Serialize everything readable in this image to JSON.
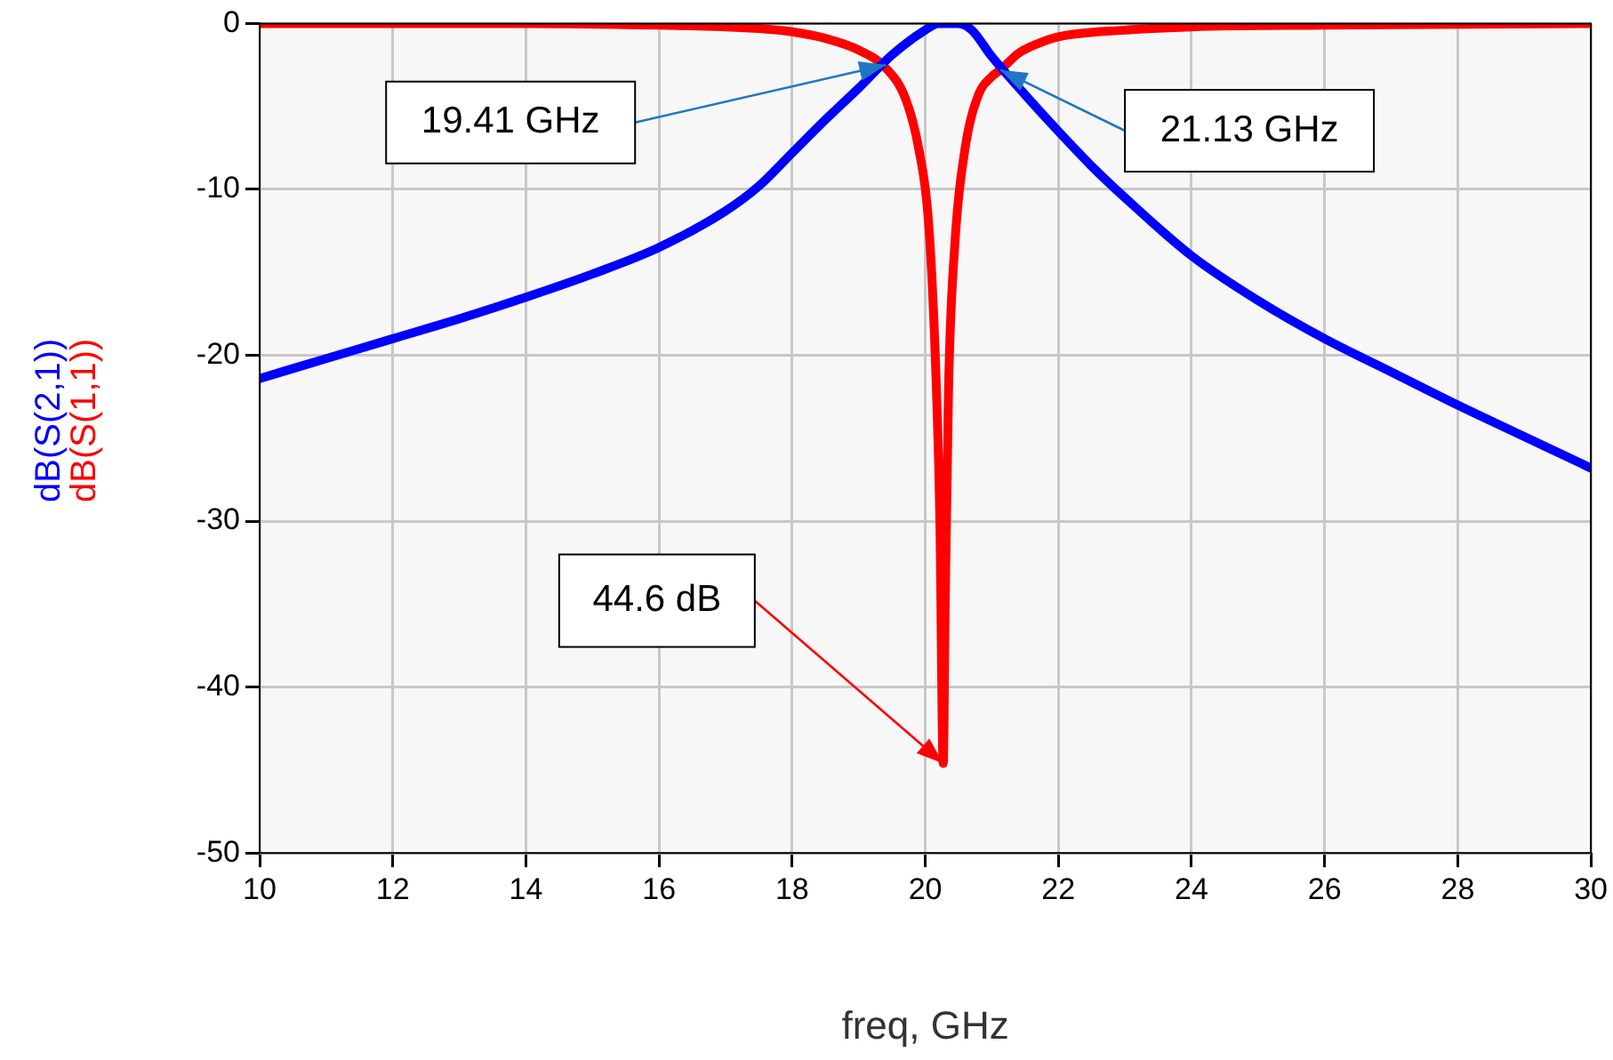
{
  "chart_data": {
    "type": "line",
    "xlabel": "freq, GHz",
    "xlim": [
      10,
      30
    ],
    "xticks": [
      10,
      12,
      14,
      16,
      18,
      20,
      22,
      24,
      26,
      28,
      30
    ],
    "ylim": [
      -50,
      0
    ],
    "yticks": [
      -50,
      -40,
      -30,
      -20,
      -10,
      0
    ],
    "grid": true,
    "legend": false,
    "marker": "none",
    "line_style": "solid",
    "series": [
      {
        "name": "dB(S(2,1))",
        "color": "#0000ff",
        "x": [
          10,
          11,
          12,
          13,
          14,
          15,
          16,
          17,
          17.5,
          18,
          18.5,
          19,
          19.5,
          20,
          20.2,
          20.5,
          20.7,
          21,
          21.5,
          22,
          22.5,
          23,
          24,
          25,
          26,
          27,
          28,
          29,
          30
        ],
        "values": [
          -21.4,
          -20.2,
          -19,
          -17.8,
          -16.5,
          -15.1,
          -13.5,
          -11.3,
          -9.8,
          -7.8,
          -5.8,
          -3.9,
          -1.9,
          -0.4,
          0,
          0,
          -0.4,
          -2,
          -4.3,
          -6.5,
          -8.6,
          -10.5,
          -14,
          -16.7,
          -19,
          -21,
          -23,
          -24.9,
          -26.8
        ]
      },
      {
        "name": "dB(S(1,1))",
        "color": "#ff0000",
        "x": [
          10,
          14,
          16,
          17,
          17.5,
          18,
          18.5,
          19,
          19.41,
          19.7,
          19.9,
          20.05,
          20.15,
          20.22,
          20.27,
          20.3,
          20.35,
          20.45,
          20.6,
          20.8,
          21,
          21.13,
          21.4,
          21.7,
          22,
          23,
          24,
          26,
          30
        ],
        "values": [
          0,
          0,
          -0.1,
          -0.2,
          -0.3,
          -0.5,
          -0.9,
          -1.6,
          -2.7,
          -4.5,
          -7.5,
          -12,
          -20,
          -30,
          -44.6,
          -35,
          -22,
          -13,
          -7.5,
          -4.3,
          -3.2,
          -2.8,
          -1.8,
          -1.2,
          -0.8,
          -0.4,
          -0.2,
          -0.1,
          0
        ]
      }
    ],
    "annotations": [
      {
        "text": "19.41 GHz",
        "x": 19.41,
        "y": -2.5
      },
      {
        "text": "21.13 GHz",
        "x": 21.13,
        "y": -2.8
      },
      {
        "text": "44.6 dB",
        "x": 20.27,
        "y": -44.6
      }
    ]
  }
}
